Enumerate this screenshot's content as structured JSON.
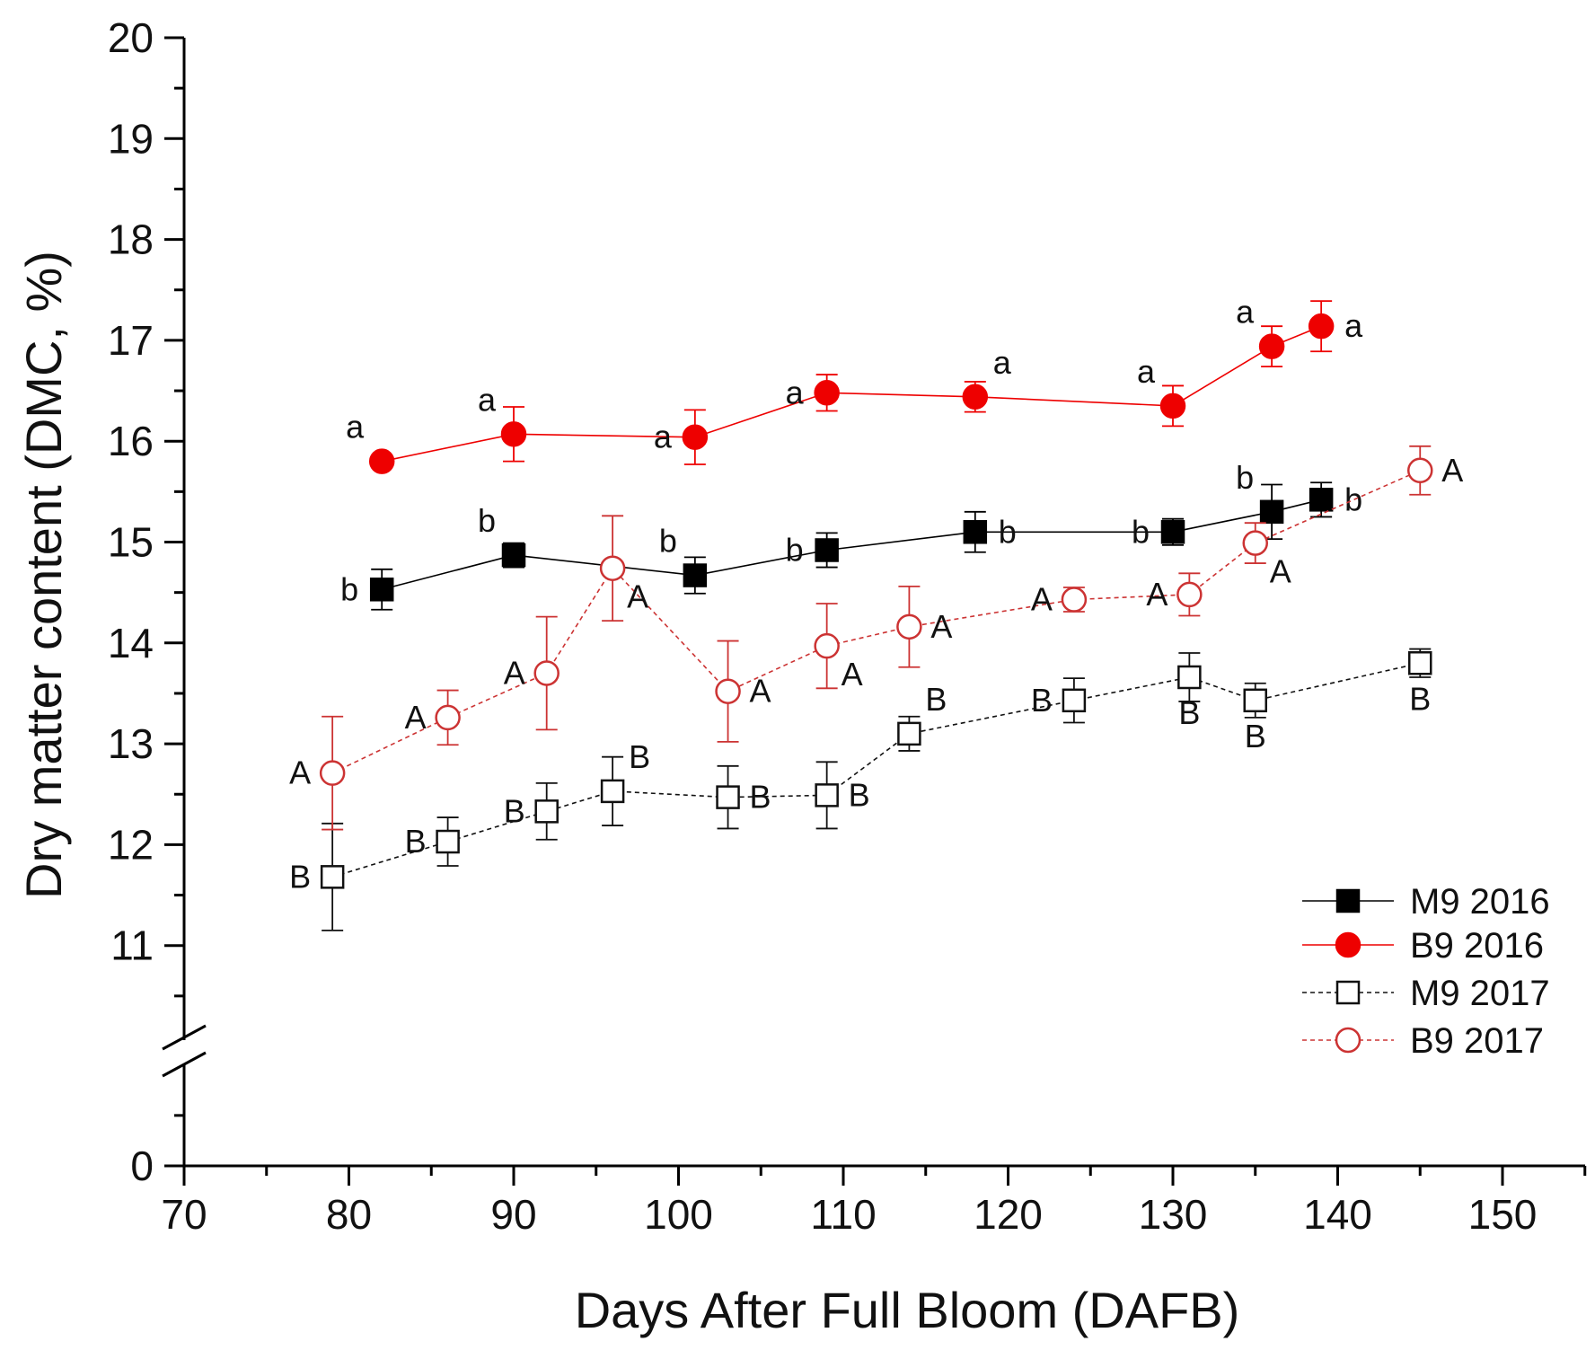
{
  "chart_data": {
    "type": "line",
    "title": "",
    "xlabel": "Days After Full Bloom (DAFB)",
    "ylabel": "Dry matter content (DMC, %)",
    "xlim": [
      70,
      155
    ],
    "ylim": [
      0,
      20
    ],
    "y_axis_break": [
      10,
      11
    ],
    "grid": false,
    "legend_position": "bottom-right",
    "x_ticks": [
      "70",
      "80",
      "90",
      "100",
      "110",
      "120",
      "130",
      "140",
      "150"
    ],
    "y_ticks": [
      "0",
      "11",
      "12",
      "13",
      "14",
      "15",
      "16",
      "17",
      "18",
      "19",
      "20"
    ],
    "x_tick_values": [
      70,
      80,
      90,
      100,
      110,
      120,
      130,
      140,
      150
    ],
    "y_tick_values": [
      0,
      11,
      12,
      13,
      14,
      15,
      16,
      17,
      18,
      19,
      20
    ],
    "series": [
      {
        "name": "M9 2016",
        "color": "#000000",
        "marker": "square",
        "filled": true,
        "dashed": false,
        "x": [
          82,
          90,
          101,
          109,
          118,
          130,
          136,
          139
        ],
        "y": [
          14.53,
          14.87,
          14.67,
          14.92,
          15.1,
          15.1,
          15.3,
          15.42
        ],
        "err": [
          0.2,
          0.12,
          0.18,
          0.17,
          0.2,
          0.13,
          0.27,
          0.17
        ],
        "labels": [
          "b",
          "b",
          "b",
          "b",
          "b",
          "b",
          "b",
          "b"
        ],
        "label_pos": [
          "left",
          "above-left",
          "above-left",
          "left",
          "right",
          "left",
          "above-left",
          "right"
        ]
      },
      {
        "name": "B9 2016",
        "color": "#ee0000",
        "marker": "circle",
        "filled": true,
        "dashed": false,
        "x": [
          82,
          90,
          101,
          109,
          118,
          130,
          136,
          139
        ],
        "y": [
          15.8,
          16.07,
          16.04,
          16.48,
          16.44,
          16.35,
          16.94,
          17.14
        ],
        "err": [
          0.0,
          0.27,
          0.27,
          0.18,
          0.15,
          0.2,
          0.2,
          0.25
        ],
        "labels": [
          "a",
          "a",
          "a",
          "a",
          "a",
          "a",
          "a",
          "a"
        ],
        "label_pos": [
          "above-left",
          "above-left",
          "left",
          "left",
          "above-right",
          "above-left",
          "above-left",
          "right"
        ]
      },
      {
        "name": "M9 2017",
        "color": "#111111",
        "marker": "square",
        "filled": false,
        "dashed": true,
        "x": [
          79,
          86,
          92,
          96,
          103,
          109,
          114,
          124,
          131,
          135,
          145
        ],
        "y": [
          11.68,
          12.03,
          12.33,
          12.53,
          12.47,
          12.49,
          13.1,
          13.43,
          13.66,
          13.43,
          13.8
        ],
        "err": [
          0.53,
          0.24,
          0.28,
          0.34,
          0.31,
          0.33,
          0.17,
          0.22,
          0.24,
          0.17,
          0.14
        ],
        "labels": [
          "B",
          "B",
          "B",
          "B",
          "B",
          "B",
          "B",
          "B",
          "B",
          "B",
          "B"
        ],
        "label_pos": [
          "left",
          "left",
          "left",
          "above-right",
          "right",
          "right",
          "above-right",
          "left",
          "below",
          "below",
          "below"
        ]
      },
      {
        "name": "B9 2017",
        "color": "#cc3333",
        "marker": "circle",
        "filled": false,
        "dashed": true,
        "x": [
          79,
          86,
          92,
          96,
          103,
          109,
          114,
          124,
          131,
          135,
          145
        ],
        "y": [
          12.71,
          13.26,
          13.7,
          14.74,
          13.52,
          13.97,
          14.16,
          14.43,
          14.48,
          14.99,
          15.71
        ],
        "err": [
          0.56,
          0.27,
          0.56,
          0.52,
          0.5,
          0.42,
          0.4,
          0.12,
          0.21,
          0.2,
          0.24
        ],
        "labels": [
          "A",
          "A",
          "A",
          "A",
          "A",
          "A",
          "A",
          "A",
          "A",
          "A",
          "A"
        ],
        "label_pos": [
          "left",
          "left",
          "left",
          "below-right",
          "right",
          "below-right",
          "right",
          "left",
          "left",
          "below-right",
          "right"
        ]
      }
    ]
  }
}
